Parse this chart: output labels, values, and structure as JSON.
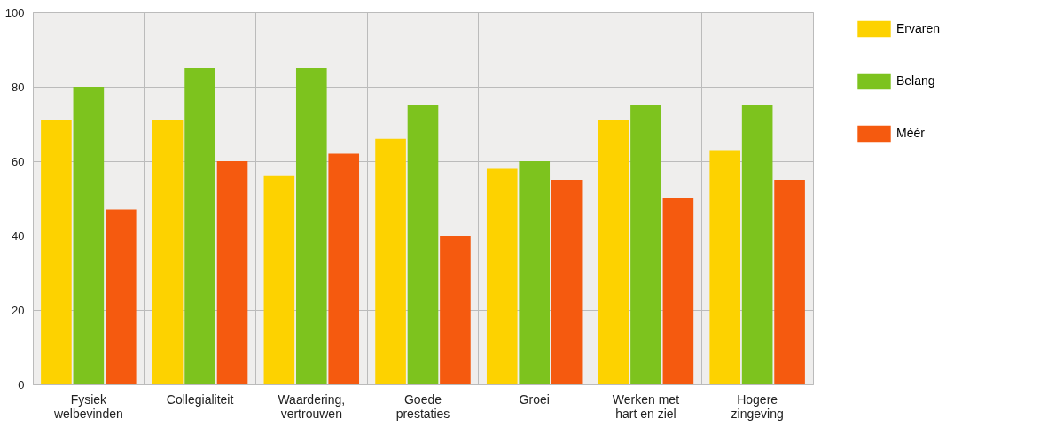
{
  "chart_data": {
    "type": "bar",
    "categories": [
      "Fysiek welbevinden",
      "Collegialiteit",
      "Waardering, vertrouwen",
      "Goede prestaties",
      "Groei",
      "Werken met hart en ziel",
      "Hogere zingeving"
    ],
    "series": [
      {
        "name": "Ervaren",
        "color": "#fdd200",
        "values": [
          71,
          71,
          56,
          66,
          58,
          71,
          63
        ]
      },
      {
        "name": "Belang",
        "color": "#7dc31e",
        "values": [
          80,
          85,
          85,
          75,
          60,
          75,
          75
        ]
      },
      {
        "name": "Méér",
        "color": "#f55a0f",
        "values": [
          47,
          60,
          62,
          40,
          55,
          50,
          55
        ]
      }
    ],
    "ylim": [
      0,
      100
    ],
    "yticks": [
      0,
      20,
      40,
      60,
      80,
      100
    ],
    "grid": true,
    "legend": "right"
  }
}
